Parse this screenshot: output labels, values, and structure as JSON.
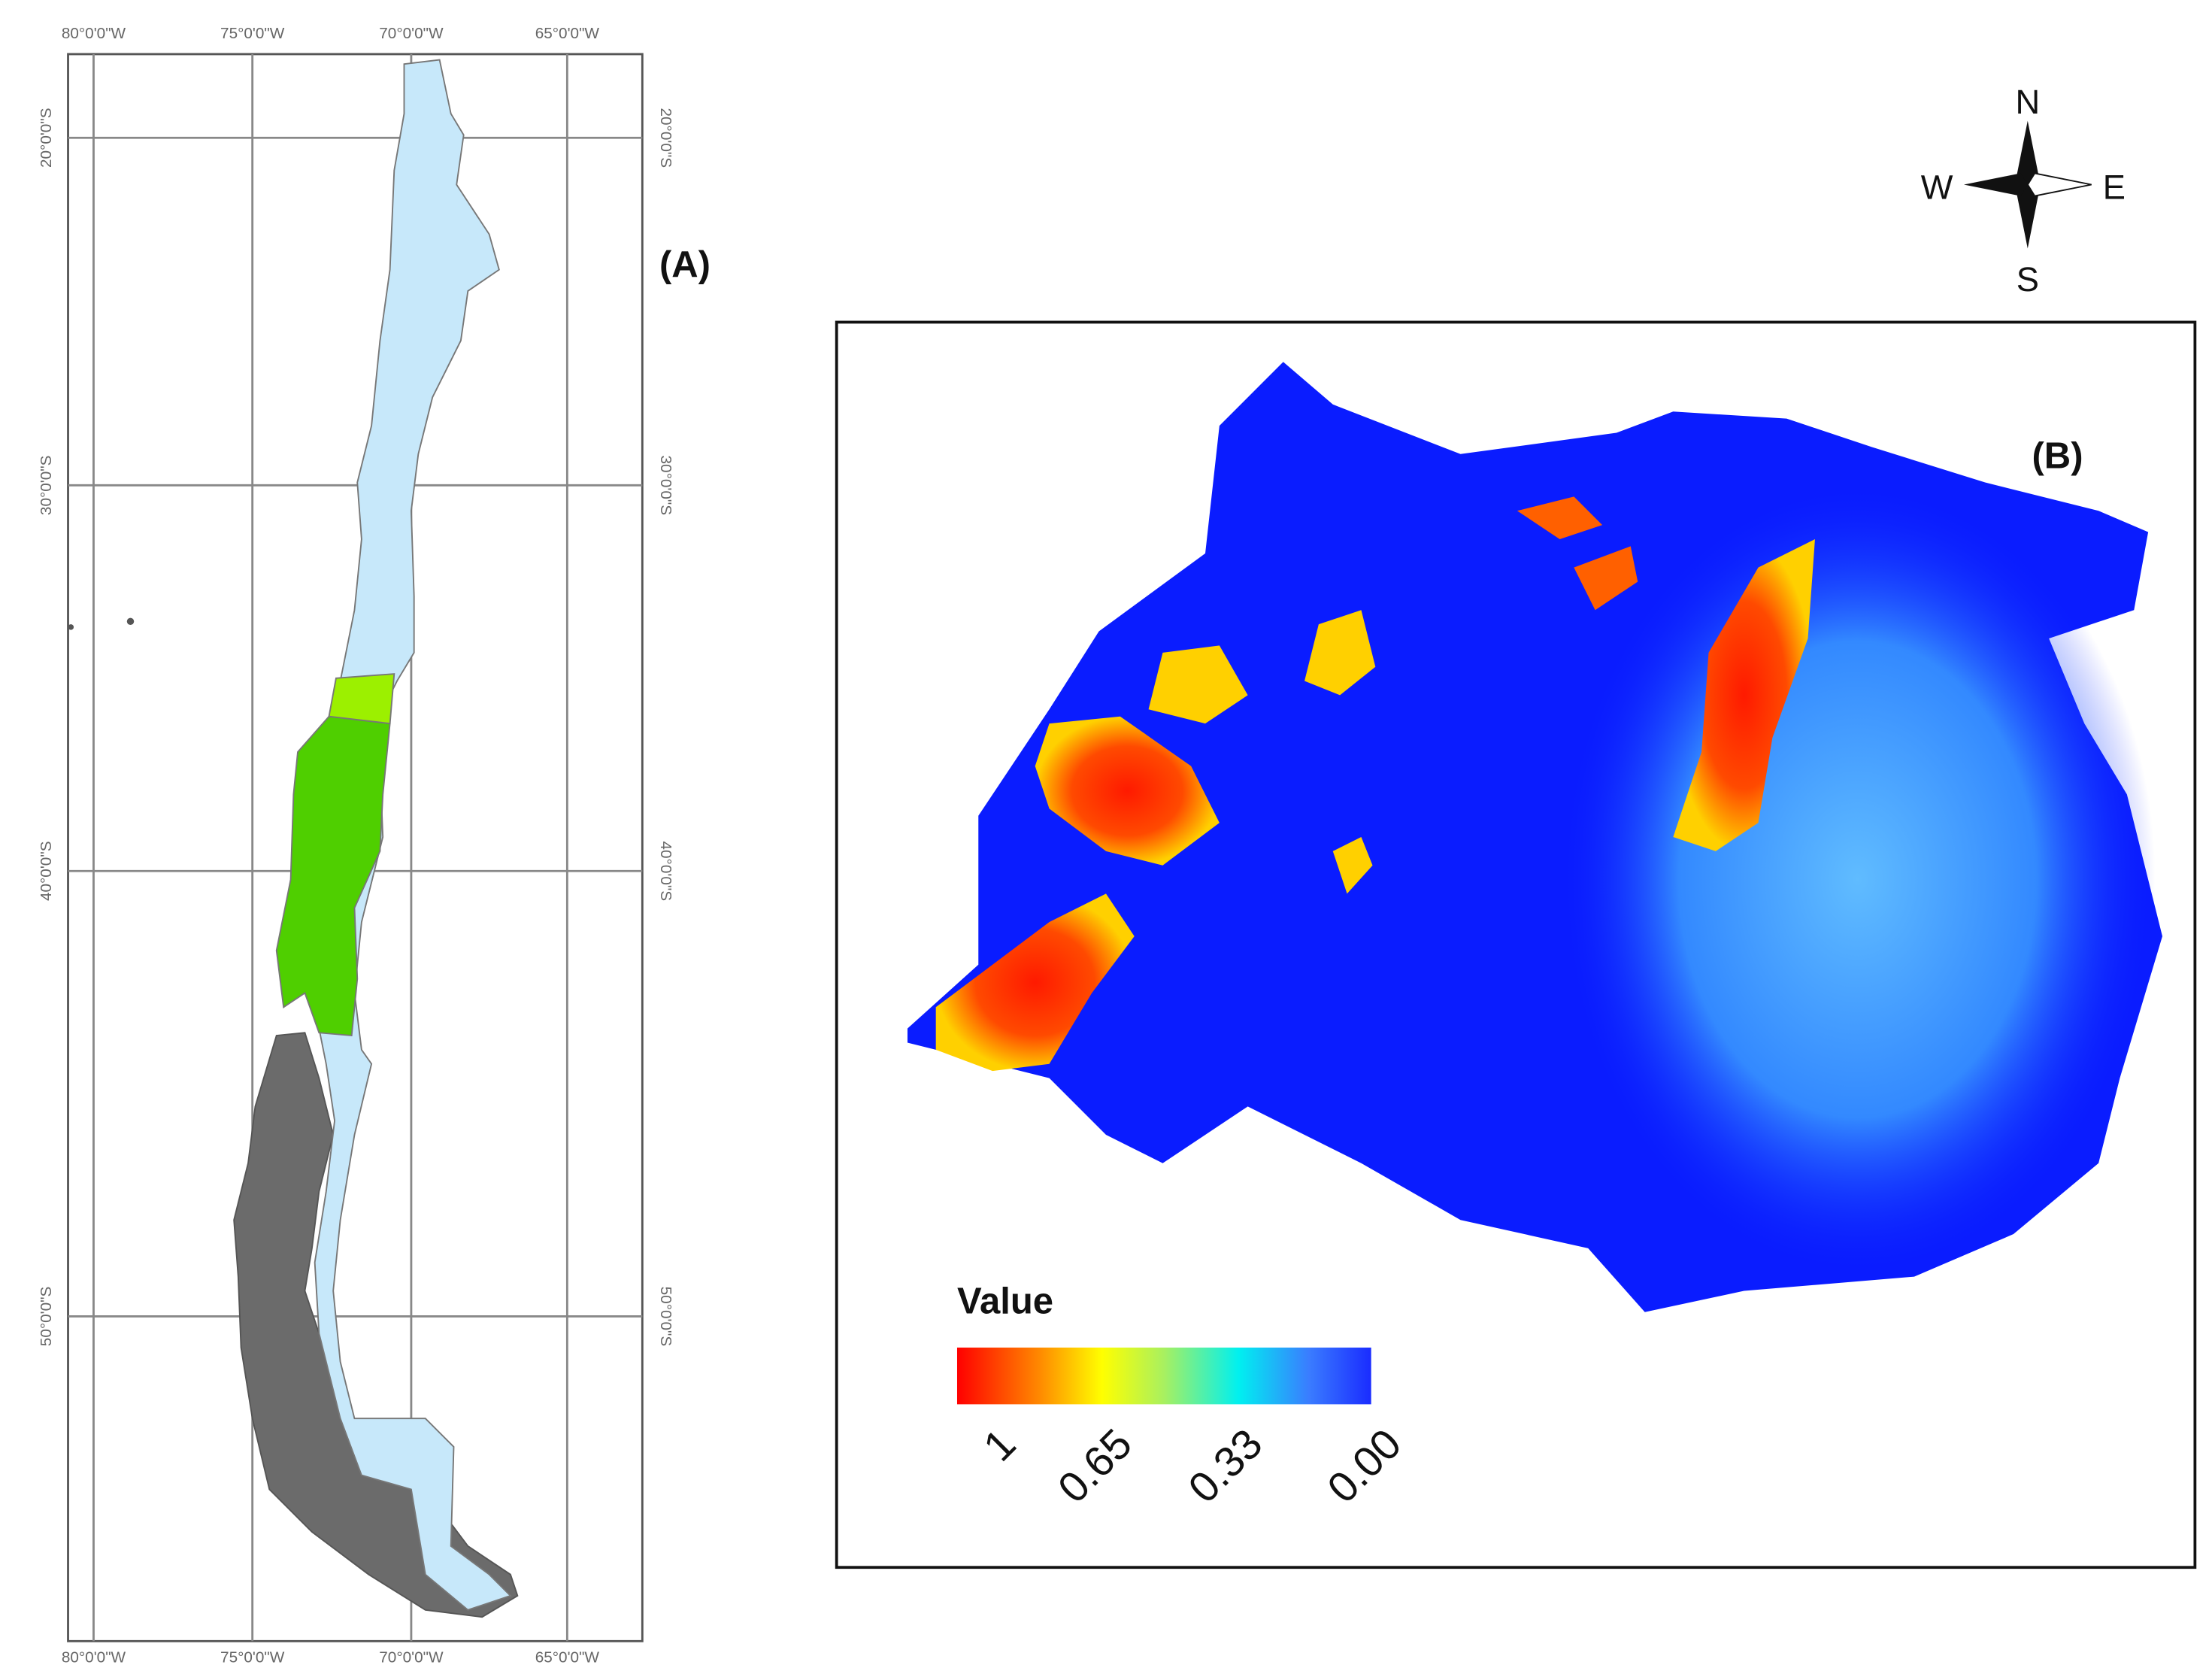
{
  "panel_a": {
    "label": "(A)",
    "top_axis": [
      "80°0'0\"W",
      "75°0'0\"W",
      "70°0'0\"W",
      "65°0'0\"W"
    ],
    "bottom_axis": [
      "80°0'0\"W",
      "75°0'0\"W",
      "70°0'0\"W",
      "65°0'0\"W"
    ],
    "left_axis": [
      "20°0'0\"S",
      "30°0'0\"S",
      "40°0'0\"S",
      "50°0'0\"S"
    ],
    "right_axis": [
      "20°0'0\"S",
      "30°0'0\"S",
      "40°0'0\"S",
      "50°0'0\"S"
    ]
  },
  "panel_b": {
    "label": "(B)",
    "legend": {
      "title": "Value",
      "ticks": [
        "1",
        "0.65",
        "0.33",
        "0.00"
      ]
    }
  },
  "compass": {
    "north": "N",
    "west": "W",
    "east": "E",
    "south": "S"
  }
}
